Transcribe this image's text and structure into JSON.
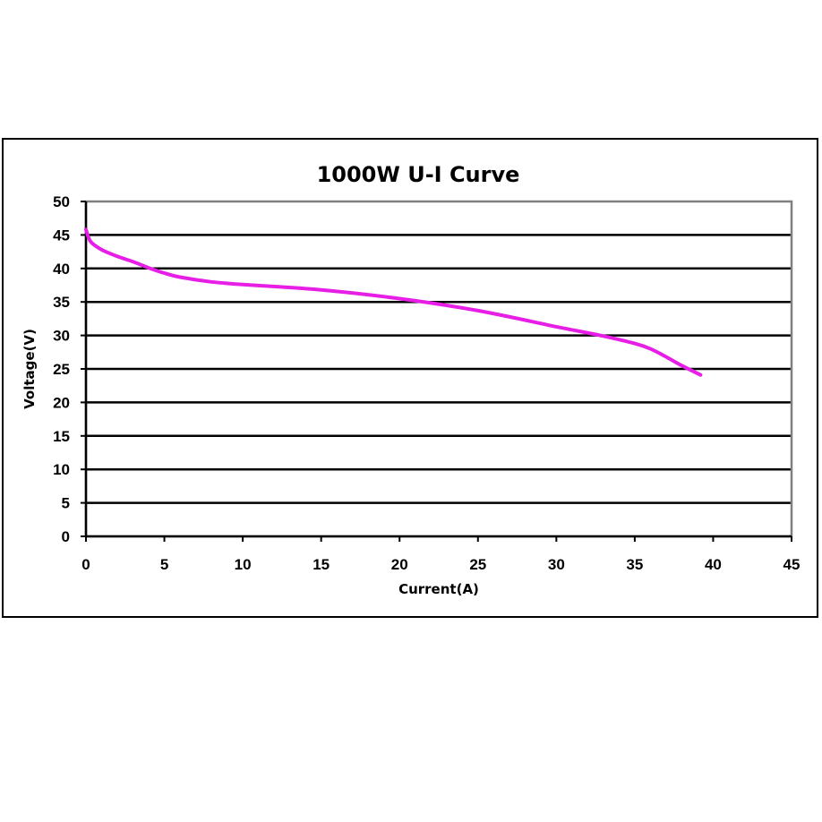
{
  "chart_data": {
    "type": "line",
    "title": "1000W U-I Curve",
    "xlabel": "Current(A)",
    "ylabel": "Voltage(V)",
    "xlim": [
      0,
      45
    ],
    "ylim": [
      0,
      50
    ],
    "xticks": [
      0,
      5,
      10,
      15,
      20,
      25,
      30,
      35,
      40,
      45
    ],
    "yticks": [
      0,
      5,
      10,
      15,
      20,
      25,
      30,
      35,
      40,
      45,
      50
    ],
    "grid": "horizontal",
    "series": [
      {
        "color": "#e61ee6",
        "x": [
          0,
          0.3,
          1,
          2,
          3,
          4,
          5,
          6,
          8,
          10,
          15,
          20,
          25,
          30,
          33,
          35,
          36,
          37,
          38,
          39.2
        ],
        "y": [
          45.8,
          44,
          42.8,
          41.8,
          41,
          40.1,
          39.3,
          38.7,
          38,
          37.6,
          36.8,
          35.5,
          33.7,
          31.3,
          29.9,
          28.8,
          28,
          26.8,
          25.5,
          24.1
        ]
      }
    ]
  }
}
